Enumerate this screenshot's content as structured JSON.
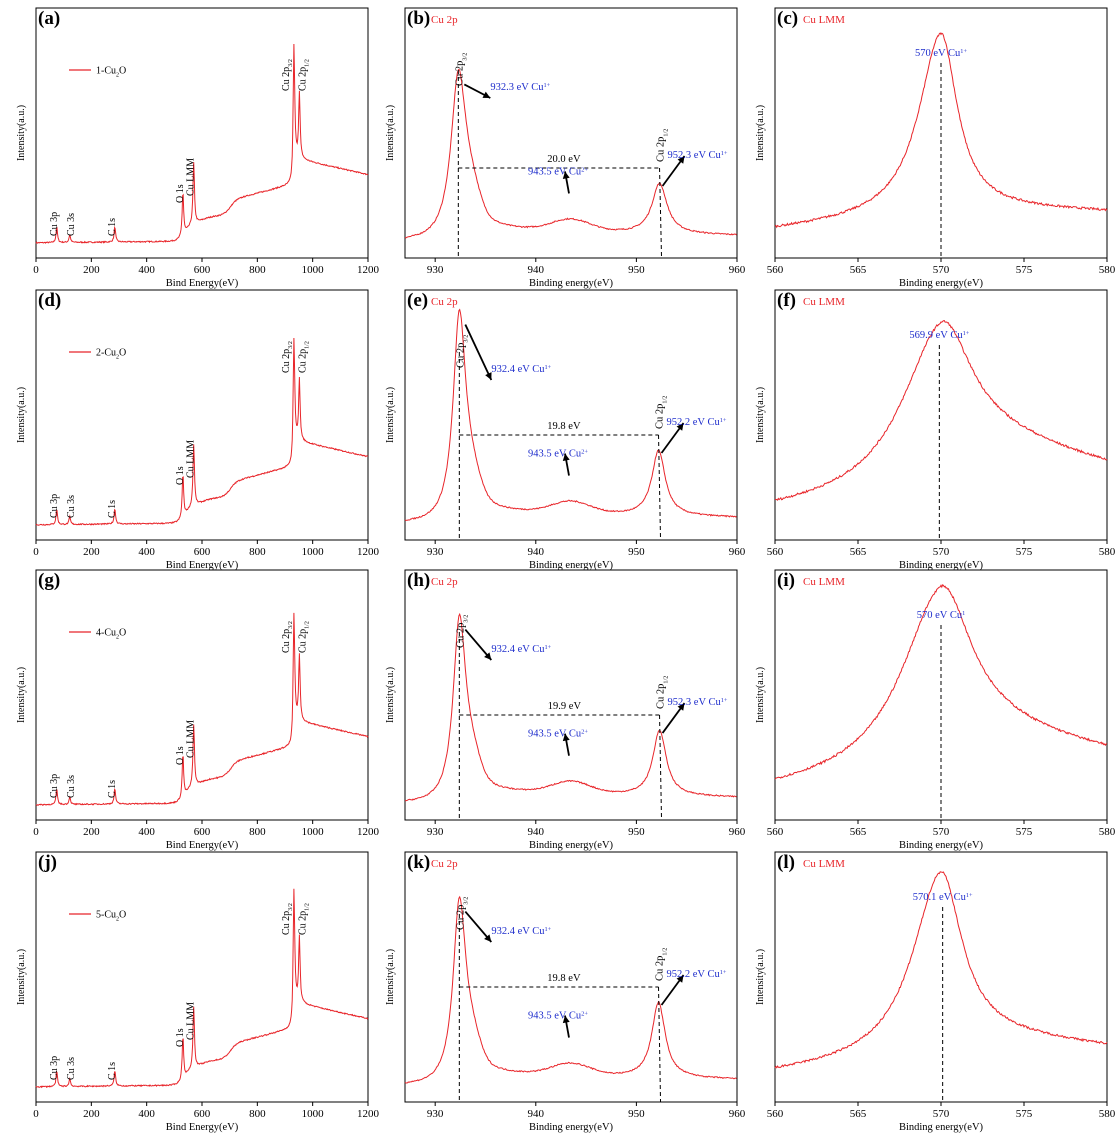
{
  "figure": {
    "colors": {
      "spectrum": "#e8252a",
      "annotation": "#1f2ecc",
      "axis": "#000000"
    },
    "axis_labels": {
      "ylabel": "Intensity(a.u.)",
      "xlabel_survey": "Bind Energy(eV)",
      "xlabel_detail": "Binding energy(eV)"
    },
    "survey_peak_labels": [
      "Cu 3p",
      "Cu 3s",
      "C 1s",
      "O 1s",
      "Cu LMM",
      "Cu 2p3/2",
      "Cu 2p1/2"
    ]
  },
  "chart_data": [
    {
      "panel": "(a)",
      "type": "line",
      "legend": "1-Cu2O",
      "legend_position": "top-left",
      "xlim": [
        0,
        1200
      ],
      "xticks": [
        0,
        200,
        400,
        600,
        800,
        1000,
        1200
      ],
      "peak_labels": [
        {
          "text": "Cu 3p",
          "x": 75
        },
        {
          "text": "Cu 3s",
          "x": 122
        },
        {
          "text": "C 1s",
          "x": 285
        },
        {
          "text": "O 1s",
          "x": 531
        },
        {
          "text": "Cu LMM",
          "x": 570
        },
        {
          "text": "Cu 2p3/2",
          "x": 932
        },
        {
          "text": "Cu 2p1/2",
          "x": 952
        }
      ],
      "peaks": [
        {
          "x": 75,
          "h": 0.07
        },
        {
          "x": 122,
          "h": 0.035
        },
        {
          "x": 285,
          "h": 0.07
        },
        {
          "x": 531,
          "h": 0.2
        },
        {
          "x": 570,
          "h": 0.28
        },
        {
          "x": 932,
          "h": 0.55
        },
        {
          "x": 952,
          "h": 0.3
        }
      ]
    },
    {
      "panel": "(b)",
      "type": "line",
      "title": "Cu 2p",
      "xlim": [
        927,
        960
      ],
      "xticks": [
        930,
        940,
        950,
        960
      ],
      "peak_labels": [
        {
          "text": "Cu 2p3/2",
          "x": 932.3
        },
        {
          "text": "Cu 2p1/2",
          "x": 952.3
        }
      ],
      "annotations": [
        {
          "text": "932.3 eV Cu1+",
          "x": 932.3
        },
        {
          "text": "952.3 eV Cu1+",
          "x": 952.3
        },
        {
          "text": "943.5 eV Cu2+",
          "x": 943.5
        },
        {
          "text": "20.0 eV",
          "kind": "splitting"
        }
      ],
      "peaks": [
        {
          "x": 932.3,
          "h": 0.62,
          "w": 0.9
        },
        {
          "x": 952.3,
          "h": 0.2,
          "w": 0.9
        }
      ]
    },
    {
      "panel": "(c)",
      "type": "line",
      "title": "Cu LMM",
      "xlim": [
        560,
        580
      ],
      "xticks": [
        560,
        565,
        570,
        575,
        580
      ],
      "annotations": [
        {
          "text": "570 eV Cu1+",
          "x": 570
        }
      ],
      "peak": {
        "x": 570,
        "h": 0.72,
        "w": 1.4,
        "right_floor": 0.03
      }
    },
    {
      "panel": "(d)",
      "type": "line",
      "legend": "2-Cu2O",
      "legend_position": "top-left",
      "xlim": [
        0,
        1200
      ],
      "xticks": [
        0,
        200,
        400,
        600,
        800,
        1000,
        1200
      ],
      "peak_labels": [
        {
          "text": "Cu 3p",
          "x": 75
        },
        {
          "text": "Cu 3s",
          "x": 122
        },
        {
          "text": "C 1s",
          "x": 285
        },
        {
          "text": "O 1s",
          "x": 531
        },
        {
          "text": "Cu LMM",
          "x": 570
        },
        {
          "text": "Cu 2p3/2",
          "x": 932
        },
        {
          "text": "Cu 2p1/2",
          "x": 952
        }
      ],
      "peaks": [
        {
          "x": 75,
          "h": 0.07
        },
        {
          "x": 122,
          "h": 0.035
        },
        {
          "x": 285,
          "h": 0.07
        },
        {
          "x": 531,
          "h": 0.2
        },
        {
          "x": 570,
          "h": 0.28
        },
        {
          "x": 932,
          "h": 0.5
        },
        {
          "x": 952,
          "h": 0.28
        }
      ]
    },
    {
      "panel": "(e)",
      "type": "line",
      "title": "Cu 2p",
      "xlim": [
        927,
        960
      ],
      "xticks": [
        930,
        940,
        950,
        960
      ],
      "peak_labels": [
        {
          "text": "Cu 2p3/2",
          "x": 932.4
        },
        {
          "text": "Cu 2p1/2",
          "x": 952.2
        }
      ],
      "annotations": [
        {
          "text": "932.4 eV Cu1+",
          "x": 932.4
        },
        {
          "text": "952.2 eV Cu1+",
          "x": 952.2
        },
        {
          "text": "943.5 eV Cu2+",
          "x": 943.5
        },
        {
          "text": "19.8 eV",
          "kind": "splitting"
        }
      ],
      "peaks": [
        {
          "x": 932.4,
          "h": 0.78,
          "w": 0.75
        },
        {
          "x": 952.2,
          "h": 0.26,
          "w": 0.8
        }
      ]
    },
    {
      "panel": "(f)",
      "type": "line",
      "title": "Cu LMM",
      "xlim": [
        560,
        580
      ],
      "xticks": [
        560,
        565,
        570,
        575,
        580
      ],
      "annotations": [
        {
          "text": "569.9 eV Cu1+",
          "x": 569.9
        }
      ],
      "peak": {
        "x": 570,
        "h": 0.62,
        "w": 2.6,
        "right_floor": 0.25
      }
    },
    {
      "panel": "(g)",
      "type": "line",
      "legend": "4-Cu2O",
      "legend_position": "top-left",
      "xlim": [
        0,
        1200
      ],
      "xticks": [
        0,
        200,
        400,
        600,
        800,
        1000,
        1200
      ],
      "peak_labels": [
        {
          "text": "Cu 3p",
          "x": 75
        },
        {
          "text": "Cu 3s",
          "x": 122
        },
        {
          "text": "C 1s",
          "x": 285
        },
        {
          "text": "O 1s",
          "x": 531
        },
        {
          "text": "Cu LMM",
          "x": 570
        },
        {
          "text": "Cu 2p3/2",
          "x": 932
        },
        {
          "text": "Cu 2p1/2",
          "x": 952
        }
      ],
      "peaks": [
        {
          "x": 75,
          "h": 0.07
        },
        {
          "x": 122,
          "h": 0.035
        },
        {
          "x": 285,
          "h": 0.07
        },
        {
          "x": 531,
          "h": 0.2
        },
        {
          "x": 570,
          "h": 0.28
        },
        {
          "x": 932,
          "h": 0.52
        },
        {
          "x": 952,
          "h": 0.3
        }
      ]
    },
    {
      "panel": "(h)",
      "type": "line",
      "title": "Cu 2p",
      "xlim": [
        927,
        960
      ],
      "xticks": [
        930,
        940,
        950,
        960
      ],
      "peak_labels": [
        {
          "text": "Cu 2p3/2",
          "x": 932.4
        },
        {
          "text": "Cu 2p1/2",
          "x": 952.3
        }
      ],
      "annotations": [
        {
          "text": "932.4 eV Cu1+",
          "x": 932.4
        },
        {
          "text": "952.3 eV Cu1+",
          "x": 952.3
        },
        {
          "text": "943.5 eV Cu2+",
          "x": 943.5
        },
        {
          "text": "19.9 eV",
          "kind": "splitting"
        }
      ],
      "peaks": [
        {
          "x": 932.4,
          "h": 0.68,
          "w": 0.75
        },
        {
          "x": 952.3,
          "h": 0.26,
          "w": 0.8
        }
      ]
    },
    {
      "panel": "(i)",
      "type": "line",
      "title": "Cu LMM",
      "xlim": [
        560,
        580
      ],
      "xticks": [
        560,
        565,
        570,
        575,
        580
      ],
      "annotations": [
        {
          "text": "570 eV Cu1",
          "x": 570
        }
      ],
      "peak": {
        "x": 570,
        "h": 0.7,
        "w": 2.6,
        "right_floor": 0.2
      }
    },
    {
      "panel": "(j)",
      "type": "line",
      "legend": "5-Cu2O",
      "legend_position": "top-left",
      "xlim": [
        0,
        1200
      ],
      "xticks": [
        0,
        200,
        400,
        600,
        800,
        1000,
        1200
      ],
      "peak_labels": [
        {
          "text": "Cu 3p",
          "x": 75
        },
        {
          "text": "Cu 3s",
          "x": 122
        },
        {
          "text": "C 1s",
          "x": 285
        },
        {
          "text": "O 1s",
          "x": 531
        },
        {
          "text": "Cu LMM",
          "x": 570
        },
        {
          "text": "Cu 2p3/2",
          "x": 932
        },
        {
          "text": "Cu 2p1/2",
          "x": 952
        }
      ],
      "peaks": [
        {
          "x": 75,
          "h": 0.07
        },
        {
          "x": 122,
          "h": 0.035
        },
        {
          "x": 285,
          "h": 0.07
        },
        {
          "x": 531,
          "h": 0.2
        },
        {
          "x": 570,
          "h": 0.28
        },
        {
          "x": 932,
          "h": 0.55
        },
        {
          "x": 952,
          "h": 0.3
        }
      ]
    },
    {
      "panel": "(k)",
      "type": "line",
      "title": "Cu 2p",
      "xlim": [
        927,
        960
      ],
      "xticks": [
        930,
        940,
        950,
        960
      ],
      "peak_labels": [
        {
          "text": "Cu 2p3/2",
          "x": 932.4
        },
        {
          "text": "Cu 2p1/2",
          "x": 952.2
        }
      ],
      "annotations": [
        {
          "text": "932.4 eV Cu1+",
          "x": 932.4
        },
        {
          "text": "952.2 eV Cu1+",
          "x": 952.2
        },
        {
          "text": "943.5 eV Cu2+",
          "x": 943.5
        },
        {
          "text": "19.8 eV",
          "kind": "splitting"
        }
      ],
      "peaks": [
        {
          "x": 932.4,
          "h": 0.68,
          "w": 0.75
        },
        {
          "x": 952.2,
          "h": 0.3,
          "w": 0.8
        }
      ]
    },
    {
      "panel": "(l)",
      "type": "line",
      "title": "Cu LMM",
      "xlim": [
        560,
        580
      ],
      "xticks": [
        560,
        565,
        570,
        575,
        580
      ],
      "annotations": [
        {
          "text": "570.1 eV Cu1+",
          "x": 570.1
        }
      ],
      "peak": {
        "x": 570,
        "h": 0.72,
        "w": 1.8,
        "right_floor": 0.1
      }
    }
  ]
}
